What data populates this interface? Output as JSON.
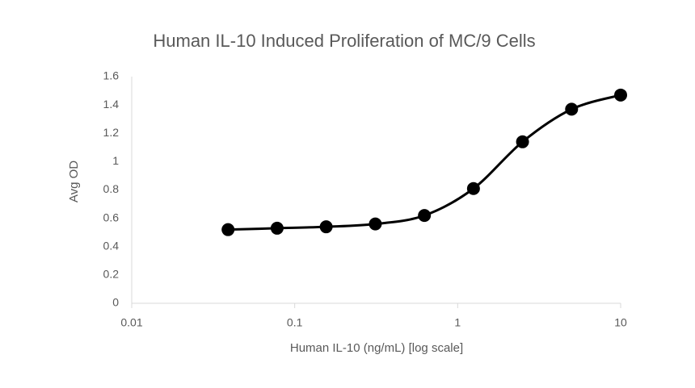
{
  "chart_data": {
    "type": "scatter",
    "title": "Human IL-10 Induced Proliferation of MC/9 Cells",
    "x_label": "Human IL-10 (ng/mL) [log scale]",
    "y_label": "Avg OD",
    "x_scale": "log",
    "series": [
      {
        "color": "#000000",
        "x": [
          0.039,
          0.078,
          0.156,
          0.3125,
          0.625,
          1.25,
          2.5,
          5,
          10
        ],
        "values": [
          0.52,
          0.53,
          0.54,
          0.56,
          0.62,
          0.81,
          1.14,
          1.37,
          1.47
        ]
      }
    ],
    "xlim": [
      0.01,
      10
    ],
    "xticks": [
      0.01,
      0.1,
      1,
      10
    ],
    "ylim": [
      0,
      1.6
    ],
    "yticks": [
      0,
      0.2,
      0.4,
      0.6,
      0.8,
      1,
      1.2,
      1.4,
      1.6
    ],
    "smooth": true
  }
}
